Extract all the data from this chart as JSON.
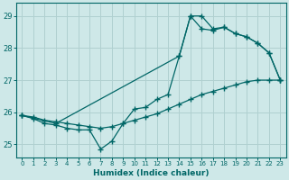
{
  "xlabel": "Humidex (Indice chaleur)",
  "bg_color": "#cee8e8",
  "grid_color": "#b0d0d0",
  "line_color": "#006666",
  "spine_color": "#006666",
  "xlim": [
    -0.5,
    23.5
  ],
  "ylim": [
    24.6,
    29.4
  ],
  "yticks": [
    25,
    26,
    27,
    28,
    29
  ],
  "xticks": [
    0,
    1,
    2,
    3,
    4,
    5,
    6,
    7,
    8,
    9,
    10,
    11,
    12,
    13,
    14,
    15,
    16,
    17,
    18,
    19,
    20,
    21,
    22,
    23
  ],
  "series": [
    {
      "x": [
        0,
        1,
        2,
        3,
        4,
        5,
        6,
        7,
        8,
        9,
        10,
        11,
        12,
        13,
        14,
        15,
        16,
        17,
        18,
        19,
        20,
        21,
        22,
        23
      ],
      "y": [
        25.9,
        25.8,
        25.65,
        25.6,
        25.5,
        25.45,
        25.45,
        24.85,
        25.1,
        25.65,
        26.1,
        26.15,
        26.4,
        26.55,
        27.75,
        29.0,
        29.0,
        28.6,
        28.65,
        28.45,
        28.35,
        28.15,
        27.85,
        27.0
      ]
    },
    {
      "x": [
        0,
        1,
        2,
        3,
        4,
        5,
        6,
        7,
        8,
        9,
        10,
        11,
        12,
        13,
        14,
        15,
        16,
        17,
        18,
        19,
        20,
        21,
        22,
        23
      ],
      "y": [
        25.9,
        25.85,
        25.75,
        25.7,
        25.65,
        25.6,
        25.55,
        25.5,
        25.55,
        25.65,
        25.75,
        25.85,
        25.95,
        26.1,
        26.25,
        26.4,
        26.55,
        26.65,
        26.75,
        26.85,
        26.95,
        27.0,
        27.0,
        27.0
      ]
    },
    {
      "comment": "triangle line: 0->14->15->23",
      "x": [
        0,
        3,
        14,
        15,
        16,
        17,
        18,
        19,
        20,
        21,
        22,
        23
      ],
      "y": [
        25.9,
        25.65,
        27.75,
        29.0,
        28.6,
        28.55,
        28.65,
        28.45,
        28.35,
        28.15,
        27.85,
        27.0
      ]
    }
  ]
}
